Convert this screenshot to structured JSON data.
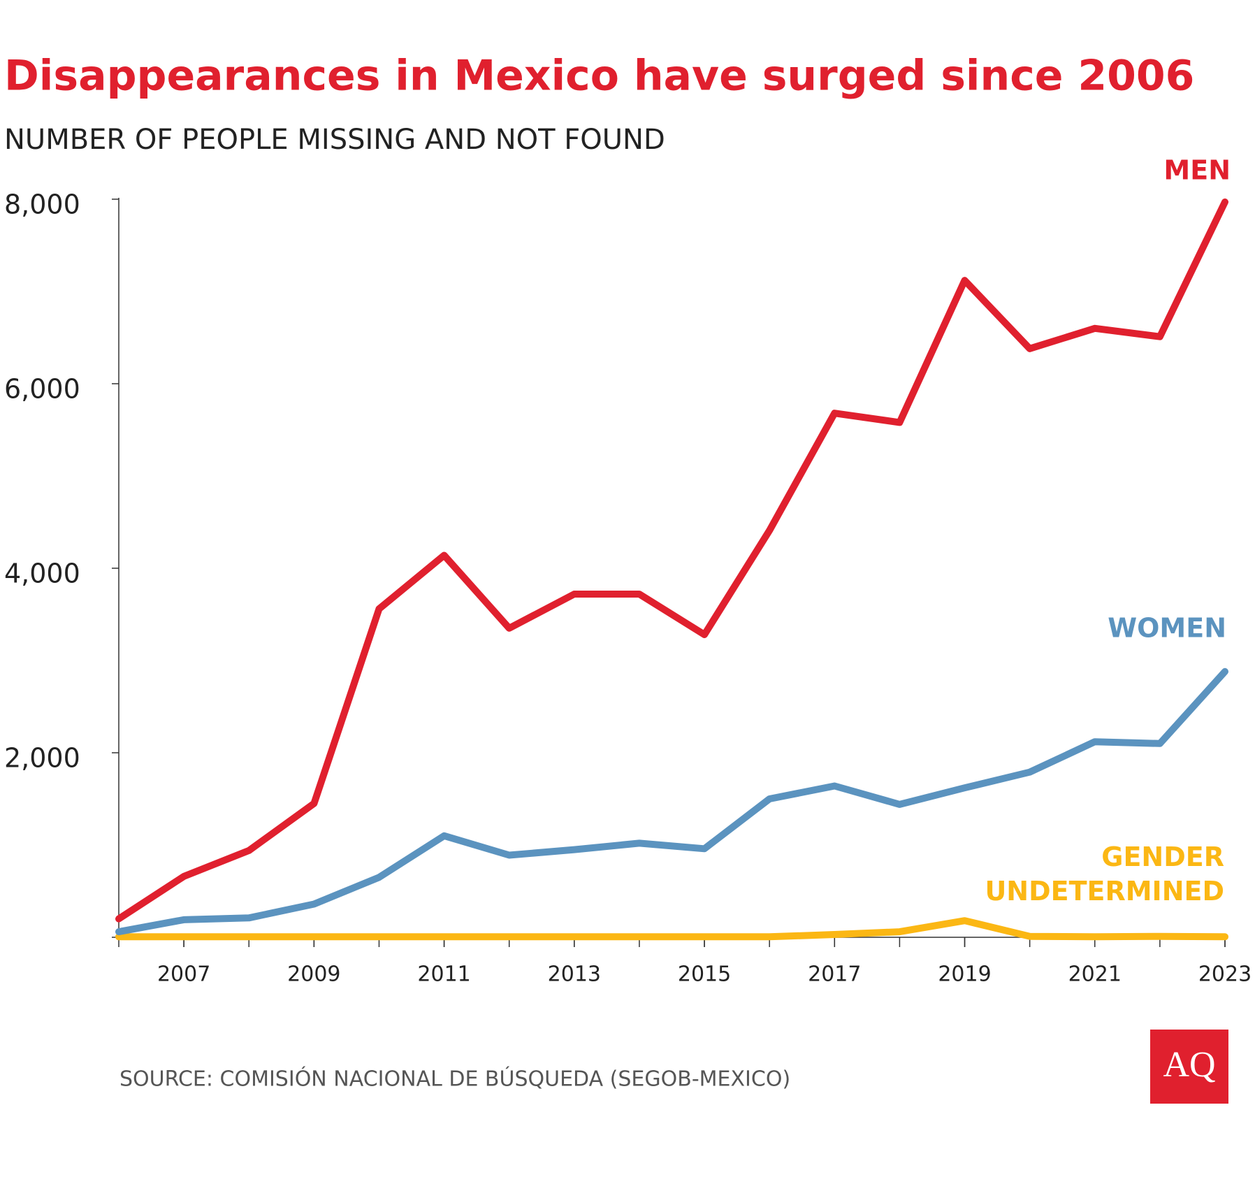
{
  "chart_data": {
    "type": "line",
    "title": "Disappearances in Mexico have surged since 2006",
    "subtitle": "NUMBER OF PEOPLE MISSING AND NOT FOUND",
    "source": "SOURCE: COMISIÓN NACIONAL DE BÚSQUEDA (SEGOB-MEXICO)",
    "logo": "AQ",
    "x": [
      2006,
      2007,
      2008,
      2009,
      2010,
      2011,
      2012,
      2013,
      2014,
      2015,
      2016,
      2017,
      2018,
      2019,
      2020,
      2021,
      2022,
      2023
    ],
    "xlim": [
      2006,
      2023
    ],
    "xticks": [
      2007,
      2009,
      2011,
      2013,
      2015,
      2017,
      2019,
      2021,
      2023
    ],
    "ylim": [
      0,
      8000
    ],
    "yticks": [
      {
        "value": 2000,
        "label": "2,000"
      },
      {
        "value": 4000,
        "label": "4,000"
      },
      {
        "value": 6000,
        "label": "6,000"
      },
      {
        "value": 8000,
        "label": "8,000"
      }
    ],
    "grid": false,
    "series": [
      {
        "name": "MEN",
        "color": "#e0202e",
        "values": [
          200,
          660,
          940,
          1450,
          3560,
          4140,
          3350,
          3720,
          3720,
          3280,
          4410,
          5680,
          5580,
          7120,
          6380,
          6600,
          6510,
          7970
        ]
      },
      {
        "name": "WOMEN",
        "color": "#5b93bf",
        "values": [
          60,
          190,
          210,
          360,
          650,
          1100,
          890,
          950,
          1020,
          960,
          1500,
          1640,
          1440,
          1620,
          1790,
          2120,
          2100,
          2880
        ]
      },
      {
        "name": "GENDER UNDETERMINED",
        "color": "#fbb714",
        "values": [
          5,
          5,
          5,
          5,
          5,
          5,
          5,
          5,
          5,
          5,
          5,
          30,
          60,
          180,
          10,
          5,
          10,
          5
        ]
      }
    ]
  }
}
